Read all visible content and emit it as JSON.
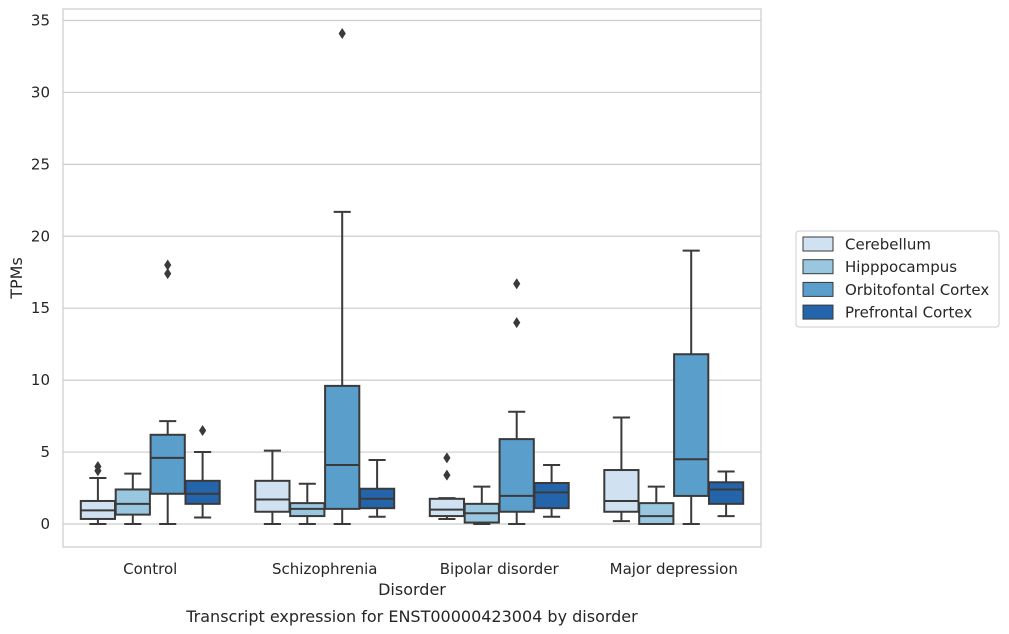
{
  "chart_data": {
    "type": "box",
    "title": "",
    "xlabel": "Disorder",
    "ylabel": "TPMs",
    "caption": "Transcript expression for ENST00000423004 by disorder",
    "ylim": [
      -1.6,
      35.8
    ],
    "yticks": [
      "0",
      "5",
      "10",
      "15",
      "20",
      "25",
      "30",
      "35"
    ],
    "grid": true,
    "legend_position": "right",
    "categories": [
      "Control",
      "Schizophrenia",
      "Bipolar disorder",
      "Major depression"
    ],
    "series": [
      {
        "name": "Cerebellum",
        "color": "#d0e1f2",
        "boxes": [
          {
            "q1": 0.35,
            "med": 0.95,
            "q3": 1.6,
            "wlo": 0.0,
            "whi": 3.2,
            "outliers": [
              3.7,
              4.0
            ]
          },
          {
            "q1": 0.85,
            "med": 1.7,
            "q3": 3.0,
            "wlo": 0.0,
            "whi": 5.1,
            "outliers": []
          },
          {
            "q1": 0.55,
            "med": 1.0,
            "q3": 1.75,
            "wlo": 0.35,
            "whi": 1.8,
            "outliers": [
              3.4,
              4.6
            ]
          },
          {
            "q1": 0.85,
            "med": 1.6,
            "q3": 3.75,
            "wlo": 0.2,
            "whi": 7.4,
            "outliers": []
          }
        ]
      },
      {
        "name": "Hipppocampus",
        "color": "#9ac7e0",
        "boxes": [
          {
            "q1": 0.65,
            "med": 1.4,
            "q3": 2.4,
            "wlo": 0.0,
            "whi": 3.5,
            "outliers": []
          },
          {
            "q1": 0.55,
            "med": 1.05,
            "q3": 1.45,
            "wlo": 0.0,
            "whi": 2.8,
            "outliers": []
          },
          {
            "q1": 0.1,
            "med": 0.75,
            "q3": 1.4,
            "wlo": 0.0,
            "whi": 2.6,
            "outliers": []
          },
          {
            "q1": 0.0,
            "med": 0.55,
            "q3": 1.45,
            "wlo": 0.0,
            "whi": 2.6,
            "outliers": []
          }
        ]
      },
      {
        "name": "Orbitofontal Cortex",
        "color": "#5a9ecc",
        "boxes": [
          {
            "q1": 2.1,
            "med": 4.6,
            "q3": 6.2,
            "wlo": 0.0,
            "whi": 7.15,
            "outliers": [
              17.4,
              18.0
            ]
          },
          {
            "q1": 1.05,
            "med": 4.1,
            "q3": 9.6,
            "wlo": 0.0,
            "whi": 21.7,
            "outliers": [
              34.1
            ]
          },
          {
            "q1": 0.85,
            "med": 1.95,
            "q3": 5.9,
            "wlo": 0.0,
            "whi": 7.8,
            "outliers": [
              14.0,
              16.7
            ]
          },
          {
            "q1": 1.95,
            "med": 4.5,
            "q3": 11.8,
            "wlo": 0.0,
            "whi": 19.0,
            "outliers": []
          }
        ]
      },
      {
        "name": "Prefrontal Cortex",
        "color": "#2464aa",
        "boxes": [
          {
            "q1": 1.4,
            "med": 2.1,
            "q3": 3.0,
            "wlo": 0.45,
            "whi": 5.0,
            "outliers": [
              6.5
            ]
          },
          {
            "q1": 1.1,
            "med": 1.75,
            "q3": 2.45,
            "wlo": 0.5,
            "whi": 4.45,
            "outliers": []
          },
          {
            "q1": 1.1,
            "med": 2.2,
            "q3": 2.85,
            "wlo": 0.5,
            "whi": 4.1,
            "outliers": []
          },
          {
            "q1": 1.4,
            "med": 2.4,
            "q3": 2.9,
            "wlo": 0.55,
            "whi": 3.65,
            "outliers": []
          }
        ]
      }
    ]
  }
}
